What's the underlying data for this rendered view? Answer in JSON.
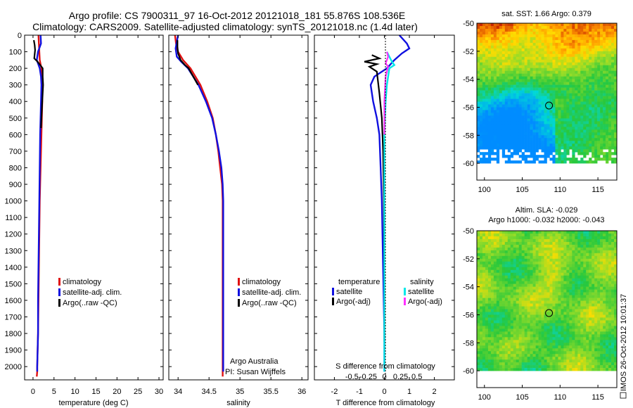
{
  "header": {
    "line1": "Argo profile: CS 7900311_97 16-Oct-2012 20121018_181 55.876S 108.536E",
    "line2": "Climatology: CARS2009. Satellite-adjusted climatology: synTS_20121018.nc (1.4d later)"
  },
  "colors": {
    "climatology": "#e01010",
    "satellite": "#1010e0",
    "argo": "#000000",
    "salinity_sat": "#00e8e8",
    "salinity_argo": "#ff30ff"
  },
  "chart_data": [
    {
      "type": "line",
      "panel": "temperature",
      "xlabel": "temperature (deg C)",
      "xlim": [
        -2,
        31
      ],
      "ylim": [
        2080,
        0
      ],
      "xticks": [
        "0",
        "5",
        "10",
        "15",
        "20",
        "25",
        "30"
      ],
      "yticks": [
        "0",
        "100",
        "200",
        "300",
        "400",
        "500",
        "600",
        "700",
        "800",
        "900",
        "1000",
        "1100",
        "1200",
        "1300",
        "1400",
        "1500",
        "1600",
        "1700",
        "1800",
        "1900",
        "2000"
      ],
      "legend": [
        "climatology",
        "satellite-adj. clim.",
        "Argo(..raw -QC)"
      ],
      "series": [
        {
          "name": "climatology",
          "color": "#e01010",
          "x": [
            1.3,
            1.4,
            1.5,
            1.6,
            2.0,
            2.1,
            2.2,
            2.1,
            2.0,
            1.9,
            1.8,
            1.7,
            1.6,
            1.5,
            1.4,
            1.3,
            1.2,
            1.1,
            1.0,
            1.0,
            0.9
          ],
          "y": [
            0,
            50,
            100,
            150,
            200,
            300,
            400,
            500,
            600,
            700,
            800,
            900,
            1000,
            1200,
            1400,
            1600,
            1800,
            1900,
            2000,
            2030,
            2060
          ]
        },
        {
          "name": "satellite-adj. clim.",
          "color": "#1010e0",
          "x": [
            1.8,
            1.9,
            1.2,
            0.9,
            1.6,
            1.9,
            2.0,
            1.9,
            1.8,
            1.7,
            1.6,
            1.5,
            1.4,
            1.3,
            1.2,
            1.2,
            1.1,
            1.0,
            1.0
          ],
          "y": [
            0,
            50,
            100,
            150,
            200,
            250,
            300,
            400,
            500,
            600,
            800,
            1000,
            1200,
            1400,
            1600,
            1800,
            1900,
            2000,
            2030
          ]
        },
        {
          "name": "Argo(..raw -QC)",
          "color": "#000000",
          "x": [
            0.2,
            0.4,
            0.5,
            0.3,
            1.1,
            2.3,
            2.3,
            2.4,
            2.2,
            2.0,
            1.9
          ],
          "y": [
            30,
            60,
            90,
            140,
            160,
            200,
            250,
            300,
            400,
            500,
            560
          ]
        }
      ]
    },
    {
      "type": "line",
      "panel": "salinity",
      "xlabel": "salinity",
      "xlim": [
        33.85,
        36.1
      ],
      "ylim": [
        2080,
        0
      ],
      "xticks": [
        "34",
        "34.5",
        "35",
        "35.5",
        "36"
      ],
      "legend": [
        "climatology",
        "satellite-adj. clim.",
        "Argo(..raw -QC)"
      ],
      "annotations": [
        "Argo Australia",
        "PI: Susan Wijffels"
      ],
      "series": [
        {
          "name": "climatology",
          "color": "#e01010",
          "x": [
            33.95,
            33.97,
            34.0,
            34.08,
            34.2,
            34.36,
            34.47,
            34.56,
            34.61,
            34.65,
            34.68,
            34.71,
            34.72,
            34.72,
            34.72,
            34.72
          ],
          "y": [
            0,
            60,
            100,
            150,
            200,
            300,
            400,
            500,
            600,
            700,
            800,
            900,
            1000,
            1400,
            1800,
            2060
          ]
        },
        {
          "name": "satellite-adj. clim.",
          "color": "#1010e0",
          "x": [
            34.0,
            33.98,
            33.96,
            33.98,
            34.05,
            34.16,
            34.33,
            34.45,
            34.55,
            34.61,
            34.66,
            34.7,
            34.72,
            34.73,
            34.73,
            34.73
          ],
          "y": [
            0,
            40,
            80,
            130,
            160,
            200,
            300,
            400,
            500,
            600,
            700,
            800,
            900,
            1000,
            1400,
            2030
          ]
        },
        {
          "name": "Argo(..raw -QC)",
          "color": "#000000",
          "x": [
            33.99,
            33.99,
            34.0,
            34.04,
            34.11,
            34.17,
            34.32
          ],
          "y": [
            30,
            70,
            110,
            150,
            180,
            200,
            300
          ]
        }
      ]
    },
    {
      "type": "line",
      "panel": "difference",
      "xlabel": "T difference from climatology",
      "xlabel2": "S difference from climatology",
      "xlim": [
        -2.8,
        2.8
      ],
      "ylim": [
        2080,
        0
      ],
      "xticks": [
        "-2",
        "-1",
        "0",
        "1",
        "2"
      ],
      "xticks_salinity": [
        "-0.5",
        "-0.25",
        "0",
        "0.25",
        "0.5"
      ],
      "legend_headers": [
        "temperature",
        "salinity"
      ],
      "legend": [
        "satellite",
        "Argo(-adj)",
        "satellite",
        "Argo(-adj)"
      ],
      "series": [
        {
          "name": "temperature satellite",
          "color": "#1010e0",
          "x": [
            0.6,
            0.9,
            1.0,
            0.7,
            0.4,
            0.1,
            -0.4,
            -0.55,
            -0.45,
            -0.3,
            -0.2,
            -0.15,
            -0.1,
            -0.05,
            0.0,
            0.0
          ],
          "y": [
            0,
            50,
            80,
            110,
            150,
            200,
            250,
            300,
            400,
            500,
            600,
            800,
            1000,
            1400,
            1800,
            2030
          ]
        },
        {
          "name": "temperature Argo(-adj)",
          "color": "#000000",
          "x": [
            -0.5,
            -0.2,
            -0.8,
            -0.3,
            -0.6,
            -0.3,
            -0.2,
            -0.1,
            -0.05,
            -0.02,
            0.0,
            0.0
          ],
          "y": [
            120,
            140,
            160,
            175,
            190,
            220,
            350,
            500,
            700,
            1000,
            1500,
            1850
          ]
        },
        {
          "name": "salinity satellite",
          "color": "#00e8e8",
          "x": [
            0.1,
            0.2,
            0.3,
            0.4,
            0.2,
            0.1,
            0.05,
            0.0,
            0.0
          ],
          "y": [
            100,
            130,
            160,
            180,
            200,
            300,
            400,
            600,
            2030
          ]
        },
        {
          "name": "salinity Argo(-adj)",
          "color": "#ff30ff",
          "x": [
            0.1,
            0.15,
            0.1,
            0.05,
            0.15,
            0.05,
            0.0,
            0.0
          ],
          "y": [
            100,
            130,
            150,
            170,
            190,
            250,
            400,
            600
          ]
        }
      ]
    },
    {
      "type": "heatmap",
      "panel": "sst",
      "title": "sat. SST: 1.66 Argo: 0.379",
      "xlim": [
        99,
        117.5
      ],
      "ylim": [
        -50,
        -61.2
      ],
      "xticks": [
        "100",
        "105",
        "110",
        "115"
      ],
      "yticks": [
        "-50",
        "-52",
        "-54",
        "-56",
        "-58",
        "-60"
      ],
      "marker": {
        "lon": 108.536,
        "lat": -55.876
      }
    },
    {
      "type": "heatmap",
      "panel": "sla",
      "title": "Altim. SLA: -0.029",
      "subtitle": "Argo h1000: -0.032 h2000: -0.043",
      "xlim": [
        99,
        117.5
      ],
      "ylim": [
        -50,
        -61.2
      ],
      "xticks": [
        "100",
        "105",
        "110",
        "115"
      ],
      "yticks": [
        "-50",
        "-52",
        "-54",
        "-56",
        "-58",
        "-60"
      ],
      "marker": {
        "lon": 108.536,
        "lat": -55.876
      }
    }
  ],
  "footer": {
    "stamp": "IMOS 26-Oct-2012 10:01:37"
  }
}
